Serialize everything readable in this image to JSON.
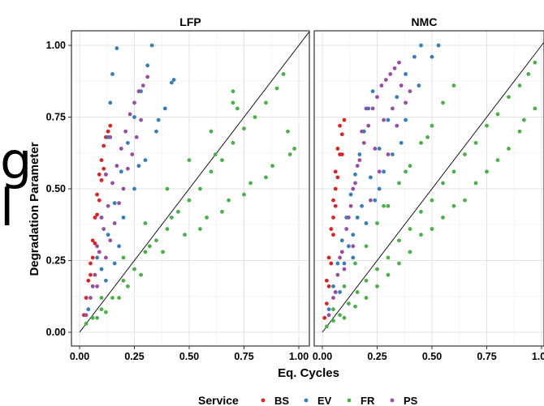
{
  "stray_text": [
    "g",
    "l"
  ],
  "chart_data": {
    "type": "scatter",
    "facets": [
      {
        "title": "LFP"
      },
      {
        "title": "NMC"
      }
    ],
    "xlabel": "Eq. Cycles",
    "ylabel": "Degradation Parameter",
    "xlim": [
      0,
      1.0
    ],
    "ylim": [
      0,
      1.0
    ],
    "x_ticks": [
      "0.00",
      "0.25",
      "0.50",
      "0.75",
      "1.00"
    ],
    "y_ticks": [
      "0.00",
      "0.25",
      "0.50",
      "0.75",
      "1.00"
    ],
    "reference_line": {
      "slope": 1,
      "intercept": 0,
      "color": "#000000"
    },
    "grid": true,
    "legend": {
      "title": "Service",
      "position": "bottom",
      "entries": [
        {
          "label": "BS",
          "color": "#d62728"
        },
        {
          "label": "EV",
          "color": "#377eb8"
        },
        {
          "label": "FR",
          "color": "#4daf4a"
        },
        {
          "label": "PS",
          "color": "#984ea3"
        }
      ]
    },
    "series": [
      {
        "name": "BS",
        "color": "#d62728",
        "LFP": [
          [
            0.02,
            0.06
          ],
          [
            0.03,
            0.12
          ],
          [
            0.04,
            0.18
          ],
          [
            0.05,
            0.24
          ],
          [
            0.06,
            0.32
          ],
          [
            0.07,
            0.4
          ],
          [
            0.08,
            0.48
          ],
          [
            0.09,
            0.55
          ],
          [
            0.1,
            0.6
          ],
          [
            0.11,
            0.65
          ],
          [
            0.12,
            0.68
          ],
          [
            0.13,
            0.7
          ],
          [
            0.14,
            0.72
          ],
          [
            0.1,
            0.53
          ],
          [
            0.07,
            0.31
          ],
          [
            0.05,
            0.2
          ],
          [
            0.08,
            0.41
          ],
          [
            0.09,
            0.46
          ],
          [
            0.06,
            0.26
          ],
          [
            0.11,
            0.57
          ]
        ],
        "NMC": [
          [
            0.01,
            0.05
          ],
          [
            0.02,
            0.1
          ],
          [
            0.03,
            0.16
          ],
          [
            0.04,
            0.24
          ],
          [
            0.05,
            0.34
          ],
          [
            0.06,
            0.44
          ],
          [
            0.07,
            0.54
          ],
          [
            0.08,
            0.62
          ],
          [
            0.09,
            0.69
          ],
          [
            0.1,
            0.74
          ],
          [
            0.05,
            0.46
          ],
          [
            0.06,
            0.56
          ],
          [
            0.04,
            0.36
          ],
          [
            0.03,
            0.26
          ],
          [
            0.07,
            0.64
          ],
          [
            0.08,
            0.72
          ],
          [
            0.02,
            0.18
          ],
          [
            0.05,
            0.4
          ],
          [
            0.06,
            0.5
          ],
          [
            0.09,
            0.62
          ]
        ]
      },
      {
        "name": "EV",
        "color": "#377eb8",
        "LFP": [
          [
            0.04,
            0.08
          ],
          [
            0.06,
            0.16
          ],
          [
            0.08,
            0.26
          ],
          [
            0.1,
            0.4
          ],
          [
            0.12,
            0.55
          ],
          [
            0.13,
            0.68
          ],
          [
            0.14,
            0.8
          ],
          [
            0.15,
            0.9
          ],
          [
            0.17,
            0.99
          ],
          [
            0.1,
            0.22
          ],
          [
            0.13,
            0.34
          ],
          [
            0.16,
            0.45
          ],
          [
            0.19,
            0.56
          ],
          [
            0.22,
            0.66
          ],
          [
            0.25,
            0.75
          ],
          [
            0.28,
            0.84
          ],
          [
            0.31,
            0.93
          ],
          [
            0.33,
            1.0
          ],
          [
            0.2,
            0.4
          ],
          [
            0.25,
            0.5
          ],
          [
            0.3,
            0.6
          ],
          [
            0.35,
            0.7
          ],
          [
            0.39,
            0.78
          ],
          [
            0.42,
            0.87
          ],
          [
            0.43,
            0.88
          ],
          [
            0.12,
            0.18
          ],
          [
            0.16,
            0.24
          ],
          [
            0.18,
            0.3
          ],
          [
            0.27,
            0.58
          ],
          [
            0.36,
            0.74
          ]
        ],
        "NMC": [
          [
            0.03,
            0.08
          ],
          [
            0.05,
            0.16
          ],
          [
            0.07,
            0.24
          ],
          [
            0.09,
            0.32
          ],
          [
            0.11,
            0.4
          ],
          [
            0.13,
            0.48
          ],
          [
            0.15,
            0.55
          ],
          [
            0.17,
            0.62
          ],
          [
            0.19,
            0.7
          ],
          [
            0.21,
            0.78
          ],
          [
            0.23,
            0.84
          ],
          [
            0.06,
            0.14
          ],
          [
            0.1,
            0.24
          ],
          [
            0.14,
            0.34
          ],
          [
            0.18,
            0.44
          ],
          [
            0.22,
            0.54
          ],
          [
            0.26,
            0.64
          ],
          [
            0.3,
            0.74
          ],
          [
            0.34,
            0.82
          ],
          [
            0.38,
            0.9
          ],
          [
            0.42,
            0.96
          ],
          [
            0.45,
            1.0
          ],
          [
            0.08,
            0.14
          ],
          [
            0.14,
            0.26
          ],
          [
            0.2,
            0.38
          ],
          [
            0.26,
            0.5
          ],
          [
            0.32,
            0.62
          ],
          [
            0.38,
            0.74
          ],
          [
            0.44,
            0.86
          ],
          [
            0.5,
            0.96
          ],
          [
            0.53,
            1.0
          ],
          [
            0.12,
            0.3
          ],
          [
            0.16,
            0.4
          ],
          [
            0.24,
            0.46
          ],
          [
            0.28,
            0.56
          ],
          [
            0.36,
            0.66
          ]
        ]
      },
      {
        "name": "FR",
        "color": "#4daf4a",
        "LFP": [
          [
            0.03,
            0.03
          ],
          [
            0.06,
            0.05
          ],
          [
            0.1,
            0.08
          ],
          [
            0.15,
            0.12
          ],
          [
            0.2,
            0.18
          ],
          [
            0.25,
            0.22
          ],
          [
            0.3,
            0.28
          ],
          [
            0.35,
            0.32
          ],
          [
            0.4,
            0.36
          ],
          [
            0.45,
            0.42
          ],
          [
            0.5,
            0.46
          ],
          [
            0.55,
            0.5
          ],
          [
            0.6,
            0.56
          ],
          [
            0.65,
            0.6
          ],
          [
            0.7,
            0.66
          ],
          [
            0.75,
            0.71
          ],
          [
            0.8,
            0.75
          ],
          [
            0.85,
            0.8
          ],
          [
            0.9,
            0.85
          ],
          [
            0.93,
            0.9
          ],
          [
            0.1,
            0.12
          ],
          [
            0.2,
            0.26
          ],
          [
            0.3,
            0.38
          ],
          [
            0.4,
            0.5
          ],
          [
            0.5,
            0.6
          ],
          [
            0.6,
            0.7
          ],
          [
            0.7,
            0.8
          ],
          [
            0.08,
            0.05
          ],
          [
            0.18,
            0.12
          ],
          [
            0.28,
            0.2
          ],
          [
            0.38,
            0.28
          ],
          [
            0.48,
            0.34
          ],
          [
            0.58,
            0.4
          ],
          [
            0.68,
            0.46
          ],
          [
            0.78,
            0.52
          ],
          [
            0.88,
            0.58
          ],
          [
            0.96,
            0.62
          ],
          [
            0.98,
            0.64
          ],
          [
            0.55,
            0.36
          ],
          [
            0.65,
            0.42
          ],
          [
            0.75,
            0.48
          ],
          [
            0.85,
            0.54
          ],
          [
            0.95,
            0.7
          ],
          [
            0.7,
            0.84
          ],
          [
            0.72,
            0.78
          ],
          [
            0.62,
            0.62
          ],
          [
            0.42,
            0.4
          ],
          [
            0.32,
            0.3
          ],
          [
            0.22,
            0.16
          ],
          [
            0.12,
            0.07
          ]
        ],
        "NMC": [
          [
            0.02,
            0.02
          ],
          [
            0.05,
            0.04
          ],
          [
            0.08,
            0.06
          ],
          [
            0.12,
            0.1
          ],
          [
            0.16,
            0.14
          ],
          [
            0.2,
            0.18
          ],
          [
            0.25,
            0.22
          ],
          [
            0.3,
            0.26
          ],
          [
            0.35,
            0.32
          ],
          [
            0.4,
            0.36
          ],
          [
            0.45,
            0.42
          ],
          [
            0.5,
            0.46
          ],
          [
            0.55,
            0.52
          ],
          [
            0.6,
            0.56
          ],
          [
            0.65,
            0.62
          ],
          [
            0.7,
            0.66
          ],
          [
            0.75,
            0.72
          ],
          [
            0.8,
            0.76
          ],
          [
            0.85,
            0.82
          ],
          [
            0.9,
            0.86
          ],
          [
            0.94,
            0.9
          ],
          [
            0.97,
            0.94
          ],
          [
            0.05,
            0.08
          ],
          [
            0.1,
            0.16
          ],
          [
            0.15,
            0.24
          ],
          [
            0.2,
            0.3
          ],
          [
            0.25,
            0.38
          ],
          [
            0.3,
            0.44
          ],
          [
            0.35,
            0.52
          ],
          [
            0.4,
            0.58
          ],
          [
            0.45,
            0.66
          ],
          [
            0.5,
            0.72
          ],
          [
            0.55,
            0.8
          ],
          [
            0.6,
            0.86
          ],
          [
            0.28,
            0.44
          ],
          [
            0.38,
            0.56
          ],
          [
            0.48,
            0.68
          ],
          [
            0.1,
            0.05
          ],
          [
            0.2,
            0.12
          ],
          [
            0.3,
            0.2
          ],
          [
            0.4,
            0.28
          ],
          [
            0.5,
            0.36
          ],
          [
            0.6,
            0.44
          ],
          [
            0.7,
            0.52
          ],
          [
            0.8,
            0.6
          ],
          [
            0.9,
            0.7
          ],
          [
            0.97,
            0.78
          ],
          [
            0.65,
            0.46
          ],
          [
            0.75,
            0.56
          ],
          [
            0.85,
            0.64
          ],
          [
            0.92,
            0.74
          ],
          [
            0.35,
            0.24
          ],
          [
            0.55,
            0.4
          ],
          [
            0.45,
            0.34
          ],
          [
            0.25,
            0.16
          ],
          [
            0.15,
            0.09
          ]
        ]
      },
      {
        "name": "PS",
        "color": "#984ea3",
        "LFP": [
          [
            0.03,
            0.06
          ],
          [
            0.05,
            0.12
          ],
          [
            0.07,
            0.2
          ],
          [
            0.09,
            0.28
          ],
          [
            0.11,
            0.36
          ],
          [
            0.13,
            0.44
          ],
          [
            0.15,
            0.52
          ],
          [
            0.17,
            0.58
          ],
          [
            0.19,
            0.64
          ],
          [
            0.21,
            0.7
          ],
          [
            0.23,
            0.76
          ],
          [
            0.25,
            0.8
          ],
          [
            0.27,
            0.84
          ],
          [
            0.29,
            0.86
          ],
          [
            0.31,
            0.89
          ],
          [
            0.08,
            0.16
          ],
          [
            0.12,
            0.26
          ],
          [
            0.16,
            0.38
          ],
          [
            0.2,
            0.5
          ],
          [
            0.24,
            0.62
          ],
          [
            0.1,
            0.4
          ],
          [
            0.12,
            0.55
          ],
          [
            0.14,
            0.68
          ],
          [
            0.08,
            0.3
          ],
          [
            0.18,
            0.45
          ],
          [
            0.22,
            0.57
          ],
          [
            0.26,
            0.68
          ],
          [
            0.14,
            0.32
          ],
          [
            0.06,
            0.16
          ],
          [
            0.28,
            0.74
          ]
        ],
        "NMC": [
          [
            0.03,
            0.06
          ],
          [
            0.05,
            0.12
          ],
          [
            0.07,
            0.2
          ],
          [
            0.09,
            0.28
          ],
          [
            0.11,
            0.36
          ],
          [
            0.13,
            0.44
          ],
          [
            0.15,
            0.52
          ],
          [
            0.17,
            0.6
          ],
          [
            0.19,
            0.66
          ],
          [
            0.21,
            0.72
          ],
          [
            0.23,
            0.78
          ],
          [
            0.25,
            0.82
          ],
          [
            0.27,
            0.86
          ],
          [
            0.29,
            0.88
          ],
          [
            0.31,
            0.9
          ],
          [
            0.33,
            0.92
          ],
          [
            0.35,
            0.94
          ],
          [
            0.08,
            0.26
          ],
          [
            0.12,
            0.4
          ],
          [
            0.14,
            0.5
          ],
          [
            0.16,
            0.58
          ],
          [
            0.18,
            0.7
          ],
          [
            0.2,
            0.78
          ],
          [
            0.1,
            0.22
          ],
          [
            0.14,
            0.3
          ],
          [
            0.22,
            0.46
          ],
          [
            0.26,
            0.56
          ],
          [
            0.3,
            0.62
          ],
          [
            0.34,
            0.72
          ],
          [
            0.38,
            0.8
          ],
          [
            0.4,
            0.84
          ],
          [
            0.06,
            0.14
          ],
          [
            0.24,
            0.64
          ],
          [
            0.28,
            0.74
          ],
          [
            0.36,
            0.86
          ],
          [
            0.32,
            0.78
          ]
        ]
      }
    ]
  }
}
